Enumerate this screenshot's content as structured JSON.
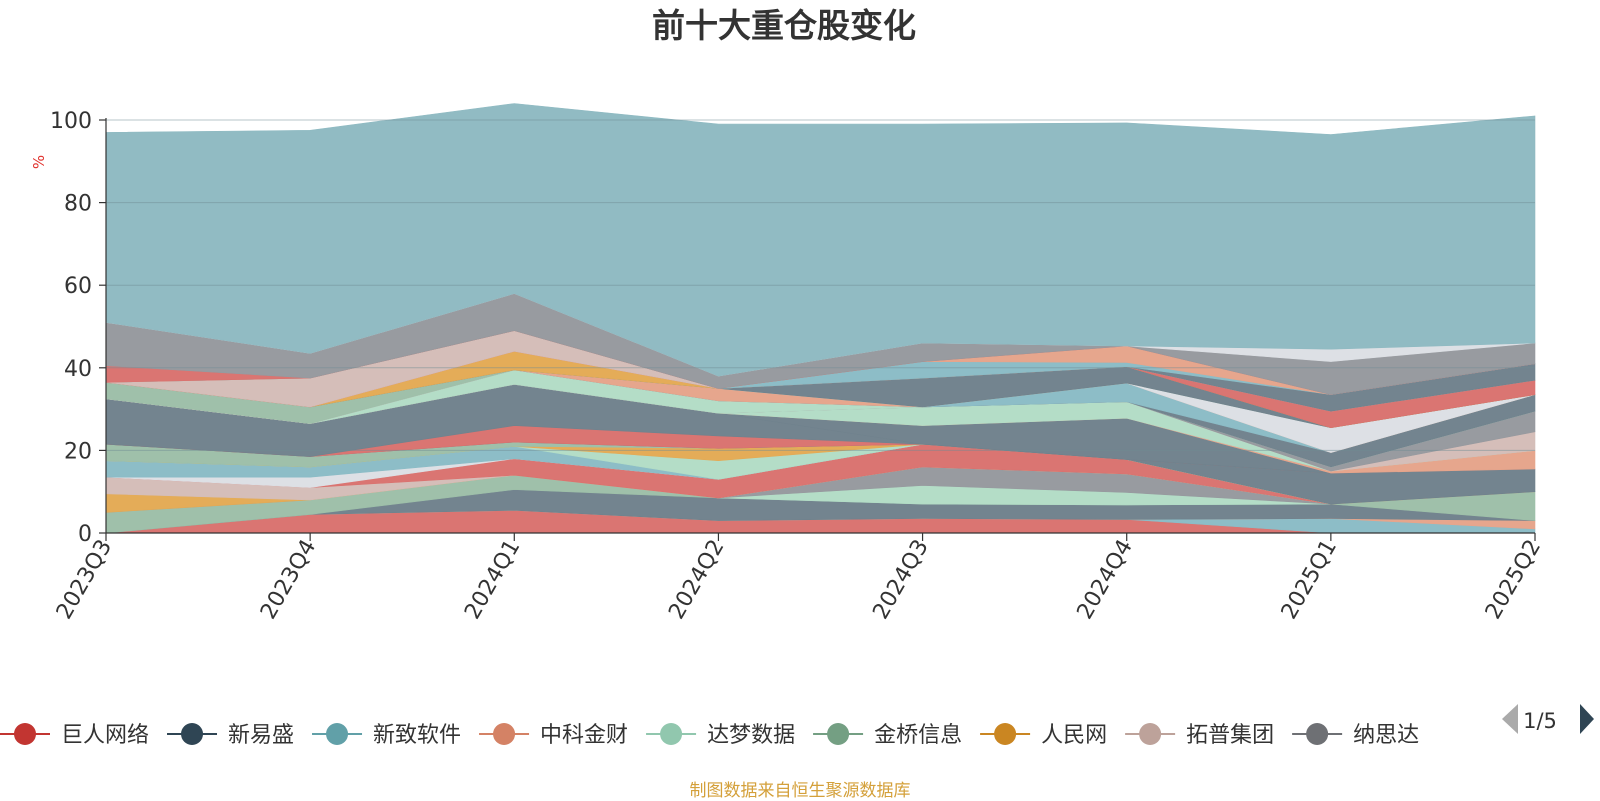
{
  "chart_data": {
    "type": "area",
    "title": "前十大重仓股变化",
    "ylabel": "%",
    "ylim": [
      0,
      100
    ],
    "yticks": [
      0,
      20,
      40,
      60,
      80,
      100
    ],
    "grid": true,
    "categories": [
      "2023Q3",
      "2023Q4",
      "2024Q1",
      "2024Q2",
      "2024Q3",
      "2024Q4",
      "2025Q1",
      "2025Q2"
    ],
    "series": [
      {
        "color": "#d9726f",
        "values": [
          0,
          4.5,
          5.5,
          3,
          3.5,
          3.3,
          0,
          0
        ]
      },
      {
        "color": "#8bbcc6",
        "values": [
          0,
          0,
          0,
          0,
          0,
          0,
          3.5,
          1
        ]
      },
      {
        "color": "#e6a48b",
        "values": [
          0,
          0,
          0,
          0,
          0,
          0,
          0,
          2
        ]
      },
      {
        "color": "#70828d",
        "values": [
          0,
          0,
          5,
          5.5,
          3.5,
          3.5,
          3.5,
          0
        ]
      },
      {
        "color": "#9dbfa8",
        "values": [
          5,
          3.5,
          3.5,
          0,
          0,
          0,
          0,
          7
        ]
      },
      {
        "color": "#b2dcc6",
        "values": [
          0,
          0,
          0,
          0,
          4.5,
          3,
          0,
          0
        ]
      },
      {
        "color": "#96999e",
        "values": [
          0,
          0,
          0,
          0,
          4.5,
          4.5,
          0,
          0
        ]
      },
      {
        "color": "#e3aa55",
        "values": [
          4.5,
          0,
          0,
          0,
          0,
          0,
          0,
          0
        ]
      },
      {
        "color": "#d4bdb8",
        "values": [
          4,
          3,
          0,
          0,
          0,
          0,
          0,
          0
        ]
      },
      {
        "color": "#d9726f",
        "values": [
          0,
          0,
          4,
          4.5,
          5.5,
          3.5,
          0,
          0
        ]
      },
      {
        "color": "#dcdfe4",
        "values": [
          0,
          2.5,
          0,
          0,
          0,
          0,
          0,
          0
        ]
      },
      {
        "color": "#8bbcc6",
        "values": [
          4,
          2.5,
          3,
          0,
          0,
          0,
          0,
          0
        ]
      },
      {
        "color": "#b2dcc6",
        "values": [
          0,
          0,
          0,
          4.5,
          0,
          0,
          0,
          0
        ]
      },
      {
        "color": "#e3aa55",
        "values": [
          0,
          0,
          0,
          3,
          0,
          0,
          0,
          0
        ]
      },
      {
        "color": "#9dbfa8",
        "values": [
          4,
          2.5,
          1,
          0,
          0,
          0,
          0,
          0
        ]
      },
      {
        "color": "#70828d",
        "values": [
          0,
          0,
          0,
          0,
          0,
          0,
          7.5,
          5.5
        ]
      },
      {
        "color": "#d9726f",
        "values": [
          0,
          0,
          4,
          3,
          0,
          0,
          0,
          0
        ]
      },
      {
        "color": "#70828d",
        "values": [
          11,
          8,
          10,
          5.5,
          0,
          0,
          0,
          0
        ]
      },
      {
        "color": "#70828d",
        "values": [
          0,
          0,
          0,
          0,
          4.5,
          10,
          0,
          0
        ]
      },
      {
        "color": "#e6a48b",
        "values": [
          0,
          0,
          0,
          0,
          0,
          0,
          0.5,
          4.5
        ]
      },
      {
        "color": "#b2dcc6",
        "values": [
          0,
          0,
          0,
          0,
          4.5,
          4,
          0,
          0
        ]
      },
      {
        "color": "#d4bdb8",
        "values": [
          0,
          0,
          0,
          0,
          0,
          0,
          0,
          4.5
        ]
      },
      {
        "color": "#96999e",
        "values": [
          0,
          0,
          0,
          0,
          0,
          0,
          1,
          5
        ]
      },
      {
        "color": "#b2dcc6",
        "values": [
          0,
          0,
          3.5,
          3,
          0,
          0,
          0,
          0
        ]
      },
      {
        "color": "#70828d",
        "values": [
          0,
          0,
          0,
          0,
          0,
          0,
          3.5,
          4
        ]
      },
      {
        "color": "#8bbcc6",
        "values": [
          0,
          0,
          0,
          0,
          0,
          4.5,
          0,
          0
        ]
      },
      {
        "color": "#e6a48b",
        "values": [
          0,
          0,
          0,
          3,
          0,
          0,
          0,
          0
        ]
      },
      {
        "color": "#dcdfe4",
        "values": [
          0,
          0,
          0,
          0,
          0,
          0,
          6,
          0
        ]
      },
      {
        "color": "#9dbfa8",
        "values": [
          4,
          4,
          0,
          0,
          0,
          0,
          0,
          0
        ]
      },
      {
        "color": "#70828d",
        "values": [
          0,
          0,
          0,
          0,
          7,
          4,
          0,
          0
        ]
      },
      {
        "color": "#e3aa55",
        "values": [
          0,
          0,
          4.5,
          0,
          0,
          0,
          0,
          0
        ]
      },
      {
        "color": "#d9726f",
        "values": [
          0,
          0,
          0,
          0,
          0,
          0,
          4,
          3.5
        ]
      },
      {
        "color": "#d4bdb8",
        "values": [
          0,
          7,
          5,
          0,
          0,
          0,
          0,
          0
        ]
      },
      {
        "color": "#70828d",
        "values": [
          0,
          0,
          0,
          0,
          0,
          0,
          4,
          4
        ]
      },
      {
        "color": "#8bbcc6",
        "values": [
          0,
          0,
          0,
          0,
          4,
          1,
          0,
          0
        ]
      },
      {
        "color": "#e6a48b",
        "values": [
          0,
          0,
          0,
          0,
          0,
          4,
          0,
          0
        ]
      },
      {
        "color": "#d9726f",
        "values": [
          4,
          0,
          0,
          0,
          0,
          0,
          0,
          0
        ]
      },
      {
        "color": "#96999e",
        "values": [
          10.5,
          6,
          9,
          3,
          4.5,
          0,
          8,
          5
        ]
      },
      {
        "color": "#dcdfe4",
        "values": [
          0,
          0,
          0,
          0,
          0,
          0,
          3,
          0
        ]
      },
      {
        "color": "#8fbac2",
        "values": [
          46,
          54,
          46,
          61,
          53,
          54,
          52,
          55
        ]
      }
    ],
    "source": "制图数据来自恒生聚源数据库"
  },
  "legend": {
    "items": [
      {
        "label": "巨人网络",
        "color": "#c23531"
      },
      {
        "label": "新易盛",
        "color": "#2f4554"
      },
      {
        "label": "新致软件",
        "color": "#61a0a8"
      },
      {
        "label": "中科金财",
        "color": "#d48265"
      },
      {
        "label": "达梦数据",
        "color": "#91c7ae"
      },
      {
        "label": "金桥信息",
        "color": "#749f83"
      },
      {
        "label": "人民网",
        "color": "#ca8622"
      },
      {
        "label": "拓普集团",
        "color": "#bda29a"
      },
      {
        "label": "纳思达",
        "color": "#6e7074"
      }
    ],
    "page_label": "1/5"
  }
}
